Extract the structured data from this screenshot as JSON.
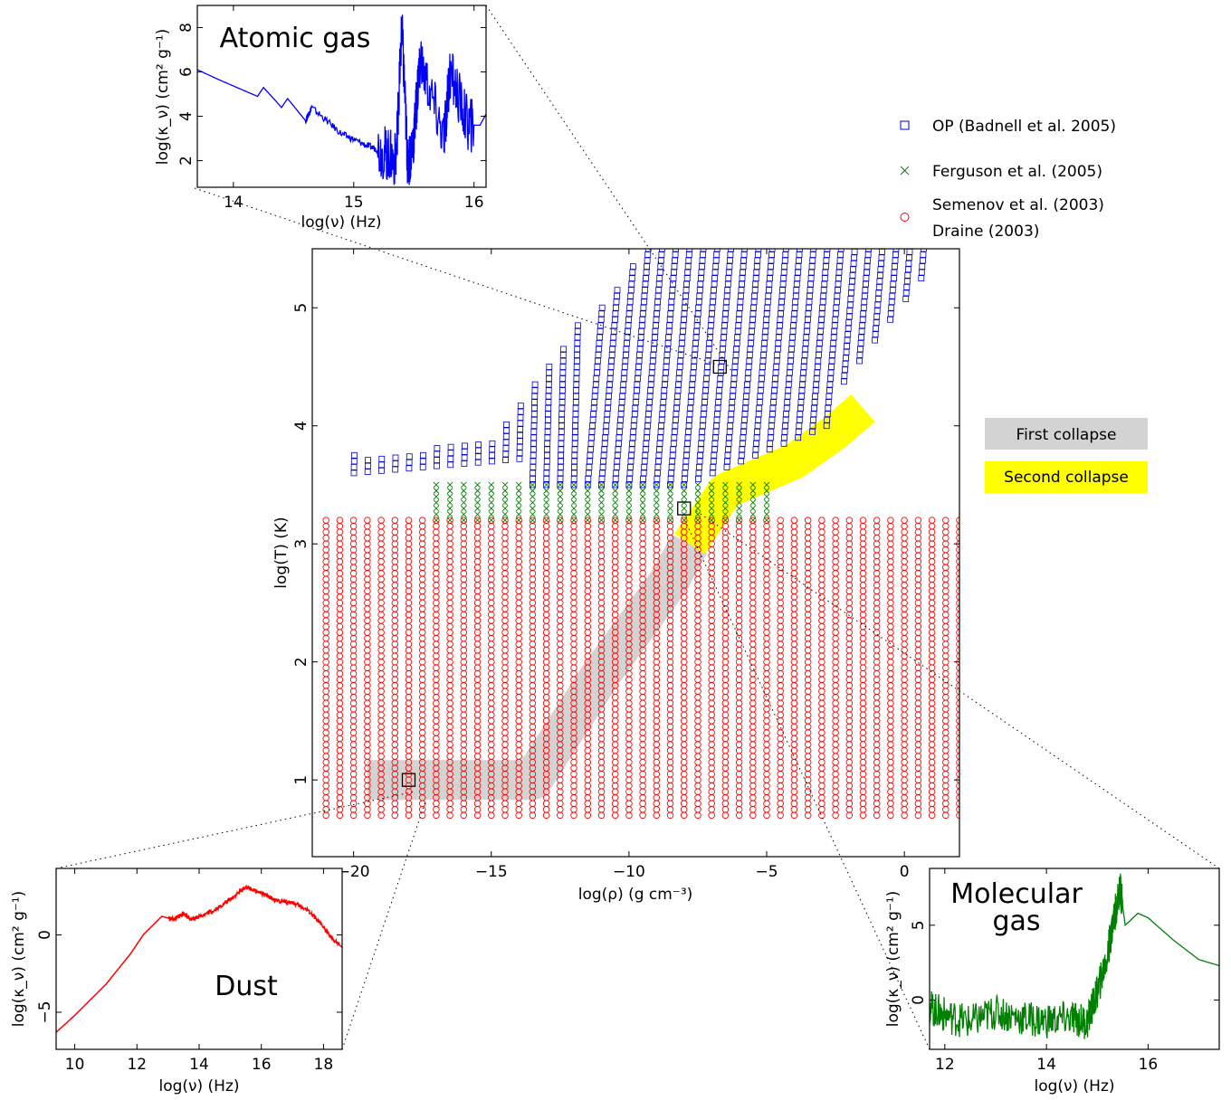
{
  "chart_data": [
    {
      "type": "scatter",
      "xlabel": "log(ρ) (g cm⁻³)",
      "ylabel": "log(T) (K)",
      "xlim": [
        -21.5,
        2
      ],
      "ylim": [
        0.35,
        5.5
      ],
      "xticks": [
        "−20",
        "−15",
        "−10",
        "−5",
        "0"
      ],
      "xtick_values": [
        -20,
        -15,
        -10,
        -5,
        0
      ],
      "yticks": [
        "1",
        "2",
        "3",
        "4",
        "5"
      ],
      "ytick_values": [
        1,
        2,
        3,
        4,
        5
      ],
      "series": [
        {
          "name": "OP (Badnell et al. 2005)",
          "marker": "square",
          "color": "#0000cc",
          "x_range": [
            -20,
            0
          ],
          "x_step": 0.5,
          "y_min": 3.5,
          "y_max": 5.5,
          "region": "upper envelope rising with density"
        },
        {
          "name": "Ferguson et al. (2005)",
          "marker": "x",
          "color": "#008000",
          "x_range": [
            -17,
            -5
          ],
          "x_step": 0.5,
          "y_range": [
            3.2,
            3.5
          ],
          "y_step": 0.05
        },
        {
          "name": "Semenov et al. (2003)\nDraine (2003)",
          "marker": "circle",
          "color": "#ff0000",
          "x_range": [
            -21,
            2
          ],
          "x_step": 0.5,
          "y_range": [
            0.7,
            3.2
          ],
          "y_step": 0.05
        }
      ],
      "highlight_bands": [
        {
          "name": "First collapse",
          "color": "#d3d3d3",
          "path": [
            [
              -19.5,
              1.0
            ],
            [
              -13.5,
              1.0
            ],
            [
              -11.0,
              1.9
            ],
            [
              -8.5,
              2.7
            ],
            [
              -7.8,
              3.0
            ]
          ]
        },
        {
          "name": "Second collapse",
          "color": "#ffff00",
          "path": [
            [
              -7.8,
              3.0
            ],
            [
              -6.5,
              3.45
            ],
            [
              -4.0,
              3.7
            ],
            [
              -2.5,
              3.95
            ],
            [
              -1.5,
              4.15
            ]
          ]
        }
      ],
      "selected_points": [
        {
          "x": -18.0,
          "y": 1.0,
          "label": "Dust"
        },
        {
          "x": -8.0,
          "y": 3.3,
          "label": "Molecular gas"
        },
        {
          "x": -6.7,
          "y": 4.5,
          "label": "Atomic gas"
        }
      ],
      "legend_position": "top-right"
    },
    {
      "type": "line",
      "title": "Atomic gas",
      "color": "#0000ff",
      "xlabel": "log(ν) (Hz)",
      "ylabel": "log(κ_ν) (cm² g⁻¹)",
      "xlim": [
        13.7,
        16.1
      ],
      "ylim": [
        0.8,
        9.0
      ],
      "xticks": [
        "14",
        "15",
        "16"
      ],
      "xtick_values": [
        14,
        15,
        16
      ],
      "yticks": [
        "2",
        "4",
        "6",
        "8"
      ],
      "ytick_values": [
        2,
        4,
        6,
        8
      ],
      "x": [
        13.7,
        13.9,
        14.2,
        14.25,
        14.4,
        14.45,
        14.6,
        14.65,
        14.9,
        15.1,
        15.25,
        15.35,
        15.4,
        15.45,
        15.5,
        15.55,
        15.75,
        15.8,
        15.95,
        16.05,
        16.1
      ],
      "y": [
        6.1,
        5.6,
        4.9,
        5.3,
        4.4,
        4.8,
        3.8,
        4.4,
        3.2,
        2.7,
        2.4,
        2.0,
        8.0,
        1.7,
        3.1,
        6.5,
        3.0,
        6.0,
        3.6,
        3.6,
        4.1
      ]
    },
    {
      "type": "line",
      "title": "Dust",
      "color": "#ff0000",
      "xlabel": "log(ν) (Hz)",
      "ylabel": "log(κ_ν) (cm² g⁻¹)",
      "xlim": [
        9.4,
        18.6
      ],
      "ylim": [
        -7.4,
        4.3
      ],
      "xticks": [
        "10",
        "12",
        "14",
        "16",
        "18"
      ],
      "xtick_values": [
        10,
        12,
        14,
        16,
        18
      ],
      "yticks": [
        "−5",
        "0"
      ],
      "ytick_values": [
        -5,
        0
      ],
      "x": [
        9.4,
        10.0,
        11.0,
        11.8,
        12.2,
        12.5,
        12.8,
        13.2,
        13.5,
        13.7,
        14.0,
        14.5,
        15.0,
        15.5,
        16.0,
        16.5,
        17.0,
        17.5,
        18.0,
        18.3,
        18.6
      ],
      "y": [
        -6.3,
        -5.2,
        -3.2,
        -1.2,
        0.0,
        0.6,
        1.2,
        1.0,
        1.4,
        1.0,
        1.2,
        1.6,
        2.3,
        3.1,
        2.7,
        2.2,
        2.1,
        1.6,
        0.5,
        -0.3,
        -0.8
      ]
    },
    {
      "type": "line",
      "title": "Molecular gas",
      "color": "#008000",
      "xlabel": "log(ν) (Hz)",
      "ylabel": "log(κ_ν) (cm² g⁻¹)",
      "xlim": [
        11.7,
        17.4
      ],
      "ylim": [
        -3.3,
        8.8
      ],
      "xticks": [
        "12",
        "14",
        "16"
      ],
      "xtick_values": [
        12,
        14,
        16
      ],
      "yticks": [
        "0",
        "5"
      ],
      "ytick_values": [
        0,
        5
      ],
      "x": [
        11.7,
        12.0,
        12.5,
        13.0,
        13.5,
        14.0,
        14.5,
        14.8,
        15.0,
        15.2,
        15.3,
        15.45,
        15.55,
        15.8,
        16.0,
        16.5,
        17.0,
        17.4
      ],
      "y": [
        -0.5,
        -1.0,
        -1.5,
        -0.8,
        -1.2,
        -1.4,
        -1.2,
        -1.5,
        0.5,
        3.0,
        5.0,
        7.5,
        5.0,
        5.8,
        5.5,
        4.0,
        2.7,
        2.3
      ]
    }
  ],
  "legend_labels": {
    "op": "OP (Badnell et al. 2005)",
    "ferguson": "Ferguson et al. (2005)",
    "semenov_1": "Semenov et al. (2003)",
    "semenov_2": "Draine (2003)"
  },
  "band_legend": {
    "first": "First collapse",
    "second": "Second collapse"
  },
  "colors": {
    "op": "#0000cc",
    "ferguson": "#008000",
    "semenov": "#ff0000",
    "first_collapse": "#d3d3d3",
    "second_collapse": "#ffff00"
  }
}
